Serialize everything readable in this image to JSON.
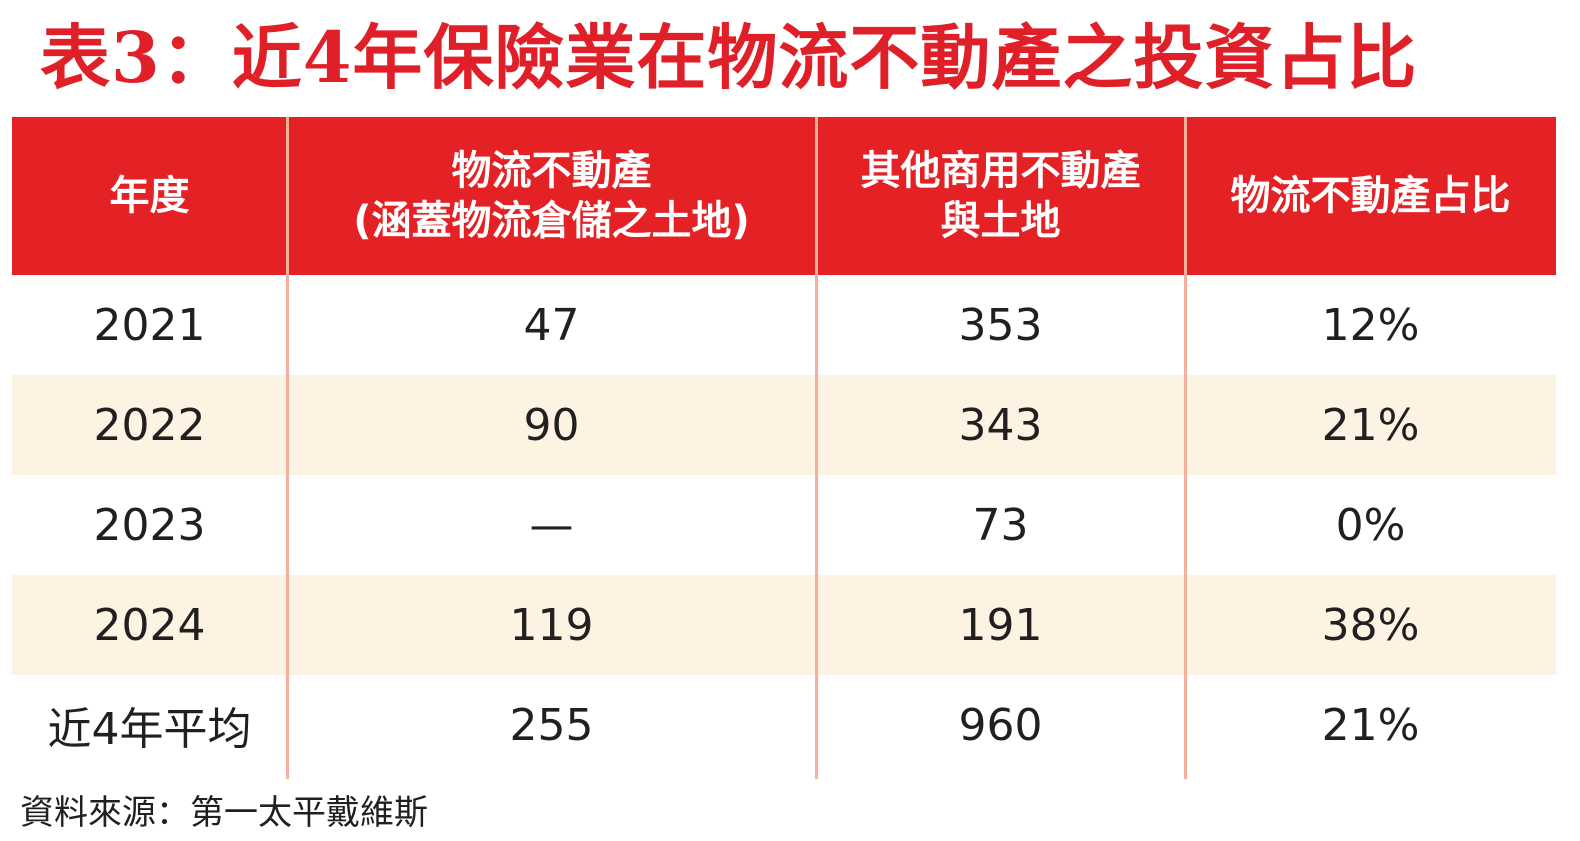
{
  "title": "表3：近4年保險業在物流不動產之投資占比",
  "header": {
    "col0": [
      "年度"
    ],
    "col1": [
      "物流不動產",
      "(涵蓋物流倉儲之土地)"
    ],
    "col2": [
      "其他商用不動產",
      "與土地"
    ],
    "col3": [
      "物流不動產占比"
    ]
  },
  "rows": [
    {
      "year": "2021",
      "logistics": "47",
      "other": "353",
      "share": "12%"
    },
    {
      "year": "2022",
      "logistics": "90",
      "other": "343",
      "share": "21%"
    },
    {
      "year": "2023",
      "logistics": "—",
      "other": "73",
      "share": "0%"
    },
    {
      "year": "2024",
      "logistics": "119",
      "other": "191",
      "share": "38%"
    },
    {
      "year": "近4年平均",
      "logistics": "255",
      "other": "960",
      "share": "21%"
    }
  ],
  "source": "資料來源：第一太平戴維斯",
  "colors": {
    "accent": "#e42125",
    "title": "#e02028",
    "stripe": "#fdf3e3",
    "divider": "#f4b09a"
  },
  "chart_data": {
    "type": "table",
    "title": "表3：近4年保險業在物流不動產之投資占比",
    "columns": [
      "年度",
      "物流不動產(涵蓋物流倉儲之土地)",
      "其他商用不動產與土地",
      "物流不動產占比"
    ],
    "categories": [
      "2021",
      "2022",
      "2023",
      "2024",
      "近4年平均"
    ],
    "series": [
      {
        "name": "物流不動產(涵蓋物流倉儲之土地)",
        "values": [
          47,
          90,
          null,
          119,
          255
        ]
      },
      {
        "name": "其他商用不動產與土地",
        "values": [
          353,
          343,
          73,
          191,
          960
        ]
      },
      {
        "name": "物流不動產占比",
        "values": [
          12,
          21,
          0,
          38,
          21
        ]
      }
    ]
  }
}
